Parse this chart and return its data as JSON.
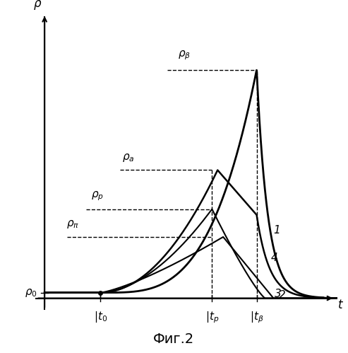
{
  "title": "Фиг.2",
  "background_color": "#ffffff",
  "line_color": "#000000",
  "t0": 0.2,
  "tp": 0.6,
  "tb": 0.76,
  "p0_level": 0.02,
  "pn_level": 0.22,
  "pr_level": 0.32,
  "pa_level": 0.46,
  "pb_level": 0.82,
  "ylim_max": 1.0,
  "xlim_max": 1.0
}
